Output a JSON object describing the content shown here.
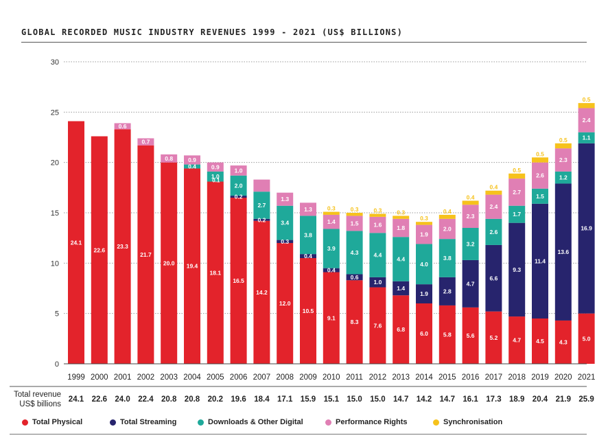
{
  "chart_data": {
    "type": "bar",
    "stacked": true,
    "title": "GLOBAL RECORDED MUSIC INDUSTRY REVENUES 1999 - 2021 (US$ BILLIONS)",
    "categories": [
      "1999",
      "2000",
      "2001",
      "2002",
      "2003",
      "2004",
      "2005",
      "2006",
      "2007",
      "2008",
      "2009",
      "2010",
      "2011",
      "2012",
      "2013",
      "2014",
      "2015",
      "2016",
      "2017",
      "2018",
      "2019",
      "2020",
      "2021"
    ],
    "ylim": [
      0,
      30
    ],
    "yticks": [
      0,
      5,
      10,
      15,
      20,
      25,
      30
    ],
    "grid": "horizontal dotted",
    "legend_position": "bottom",
    "series": [
      {
        "name": "Total Physical",
        "color": "#e3232b",
        "values": [
          24.1,
          22.6,
          23.3,
          21.7,
          20.0,
          19.4,
          18.1,
          16.5,
          14.2,
          12.0,
          10.5,
          9.1,
          8.3,
          7.6,
          6.8,
          6.0,
          5.8,
          5.6,
          5.2,
          4.7,
          4.5,
          4.3,
          5.0
        ],
        "labels": [
          "24.1",
          "22.6",
          "23.3",
          "21.7",
          "20.0",
          "19.4",
          "18.1",
          "16.5",
          "14.2",
          "12.0",
          "10.5",
          "9.1",
          "8.3",
          "7.6",
          "6.8",
          "6.0",
          "5.8",
          "5.6",
          "5.2",
          "4.7",
          "4.5",
          "4.3",
          "5.0"
        ]
      },
      {
        "name": "Total Streaming",
        "color": "#27246d",
        "values": [
          0,
          0,
          0,
          0,
          0,
          0,
          0,
          0.2,
          0.2,
          0.3,
          0.4,
          0.4,
          0.6,
          1.0,
          1.4,
          1.9,
          2.8,
          4.7,
          6.6,
          9.3,
          11.4,
          13.6,
          16.9
        ],
        "labels": [
          "",
          "",
          "",
          "",
          "",
          "",
          "",
          "0.2",
          "0.2",
          "0.3",
          "0.4",
          "0.4",
          "0.6",
          "1.0",
          "1.4",
          "1.9",
          "2.8",
          "4.7",
          "6.6",
          "9.3",
          "11.4",
          "13.6",
          "16.9"
        ]
      },
      {
        "name": "Downloads & Other Digital",
        "color": "#1fa99a",
        "values": [
          0,
          0,
          0,
          0,
          0,
          0.4,
          1.0,
          2.0,
          2.7,
          3.4,
          3.8,
          3.9,
          4.3,
          4.4,
          4.4,
          4.0,
          3.8,
          3.2,
          2.6,
          1.7,
          1.5,
          1.2,
          1.1
        ],
        "labels": [
          "",
          "",
          "",
          "",
          "",
          "0.4",
          "1.0",
          "2.0",
          "2.7",
          "3.4",
          "3.8",
          "3.9",
          "4.3",
          "4.4",
          "4.4",
          "4.0",
          "3.8",
          "3.2",
          "2.6",
          "1.7",
          "1.5",
          "1.2",
          "1.1"
        ]
      },
      {
        "name": "Performance Rights",
        "color": "#e07fb4",
        "values": [
          0,
          0,
          0.6,
          0.7,
          0.8,
          0.9,
          0.9,
          1.0,
          1.2,
          1.3,
          1.3,
          1.4,
          1.5,
          1.6,
          1.8,
          1.9,
          2.0,
          2.3,
          2.4,
          2.7,
          2.6,
          2.3,
          2.4
        ],
        "labels": [
          "",
          "",
          "0.6",
          "0.7",
          "0.8",
          "0.9",
          "0.9",
          "1.0",
          "",
          "1.3",
          "1.3",
          "1.4",
          "1.5",
          "1.6",
          "1.8",
          "1.9",
          "2.0",
          "2.3",
          "2.4",
          "2.7",
          "2.6",
          "2.3",
          "2.4"
        ]
      },
      {
        "name": "Synchronisation",
        "color": "#f6c21c",
        "values": [
          0,
          0,
          0,
          0,
          0,
          0,
          0,
          0,
          0,
          0,
          0,
          0.3,
          0.3,
          0.3,
          0.3,
          0.3,
          0.4,
          0.4,
          0.4,
          0.5,
          0.5,
          0.5,
          0.5
        ],
        "labels": [
          "",
          "",
          "",
          "",
          "",
          "",
          "",
          "",
          "",
          "",
          "",
          "0.3",
          "0.3",
          "0.3",
          "0.3",
          "0.3",
          "0.4",
          "0.4",
          "0.4",
          "0.5",
          "0.5",
          "0.5",
          "0.5"
        ]
      }
    ],
    "extra_labels": [
      {
        "category_index": 6,
        "text": "0.1"
      }
    ],
    "totals_label": "Total revenue\nUS$ billions",
    "totals": [
      "24.1",
      "22.6",
      "24.0",
      "22.4",
      "20.8",
      "20.8",
      "20.2",
      "19.6",
      "18.4",
      "17.1",
      "15.9",
      "15.1",
      "15.0",
      "15.0",
      "14.7",
      "14.2",
      "14.7",
      "16.1",
      "17.3",
      "18.9",
      "20.4",
      "21.9",
      "25.9"
    ]
  }
}
